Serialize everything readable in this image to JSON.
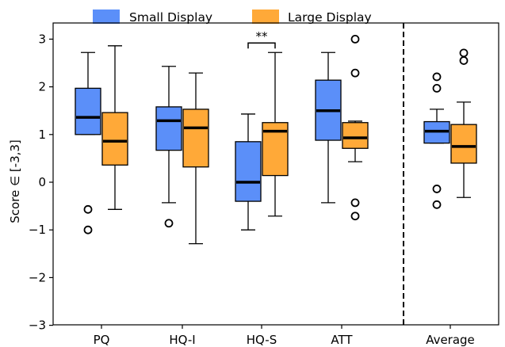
{
  "chart_data": {
    "type": "boxplot",
    "title": "",
    "xlabel": "",
    "ylabel": "Score ∈ [-3,3]",
    "ylim": [
      -3,
      3.3
    ],
    "yticks": [
      -3,
      -2,
      -1,
      0,
      1,
      2,
      3
    ],
    "ytick_labels": [
      "−3",
      "−2",
      "−1",
      "0",
      "1",
      "2",
      "3"
    ],
    "categories": [
      "PQ",
      "HQ-I",
      "HQ-S",
      "ATT",
      "Average"
    ],
    "legend_position": "top-center",
    "separator": "dashed vertical line between ATT and Average",
    "series": [
      {
        "name": "Small Display",
        "color": "#5b8ff9",
        "boxes": [
          {
            "q1": 1.0,
            "median": 1.36,
            "q3": 1.97,
            "whislo": 1.0,
            "whishi": 2.72,
            "fliers": [
              -0.57,
              -1.0
            ]
          },
          {
            "q1": 0.67,
            "median": 1.29,
            "q3": 1.58,
            "whislo": -0.43,
            "whishi": 2.43,
            "fliers": [
              -0.86
            ]
          },
          {
            "q1": -0.4,
            "median": 0.0,
            "q3": 0.85,
            "whislo": -1.0,
            "whishi": 1.43,
            "fliers": []
          },
          {
            "q1": 0.88,
            "median": 1.5,
            "q3": 2.14,
            "whislo": -0.43,
            "whishi": 2.72,
            "fliers": []
          },
          {
            "q1": 0.82,
            "median": 1.07,
            "q3": 1.27,
            "whislo": 0.82,
            "whishi": 1.53,
            "fliers": [
              2.21,
              1.97,
              -0.14,
              -0.47
            ]
          }
        ]
      },
      {
        "name": "Large Display",
        "color": "#ffa938",
        "boxes": [
          {
            "q1": 0.36,
            "median": 0.86,
            "q3": 1.46,
            "whislo": -0.57,
            "whishi": 2.86,
            "fliers": []
          },
          {
            "q1": 0.32,
            "median": 1.14,
            "q3": 1.53,
            "whislo": -1.29,
            "whishi": 2.29,
            "fliers": []
          },
          {
            "q1": 0.14,
            "median": 1.07,
            "q3": 1.25,
            "whislo": -0.71,
            "whishi": 2.72,
            "fliers": []
          },
          {
            "q1": 0.71,
            "median": 0.93,
            "q3": 1.25,
            "whislo": 0.43,
            "whishi": 1.28,
            "fliers": [
              3.0,
              2.29,
              -0.43,
              -0.71
            ]
          },
          {
            "q1": 0.4,
            "median": 0.75,
            "q3": 1.21,
            "whislo": -0.32,
            "whishi": 1.68,
            "fliers": [
              2.71,
              2.55
            ]
          }
        ]
      }
    ],
    "annotations": [
      {
        "text": "**",
        "category": "HQ-S",
        "y": 2.92
      }
    ]
  }
}
